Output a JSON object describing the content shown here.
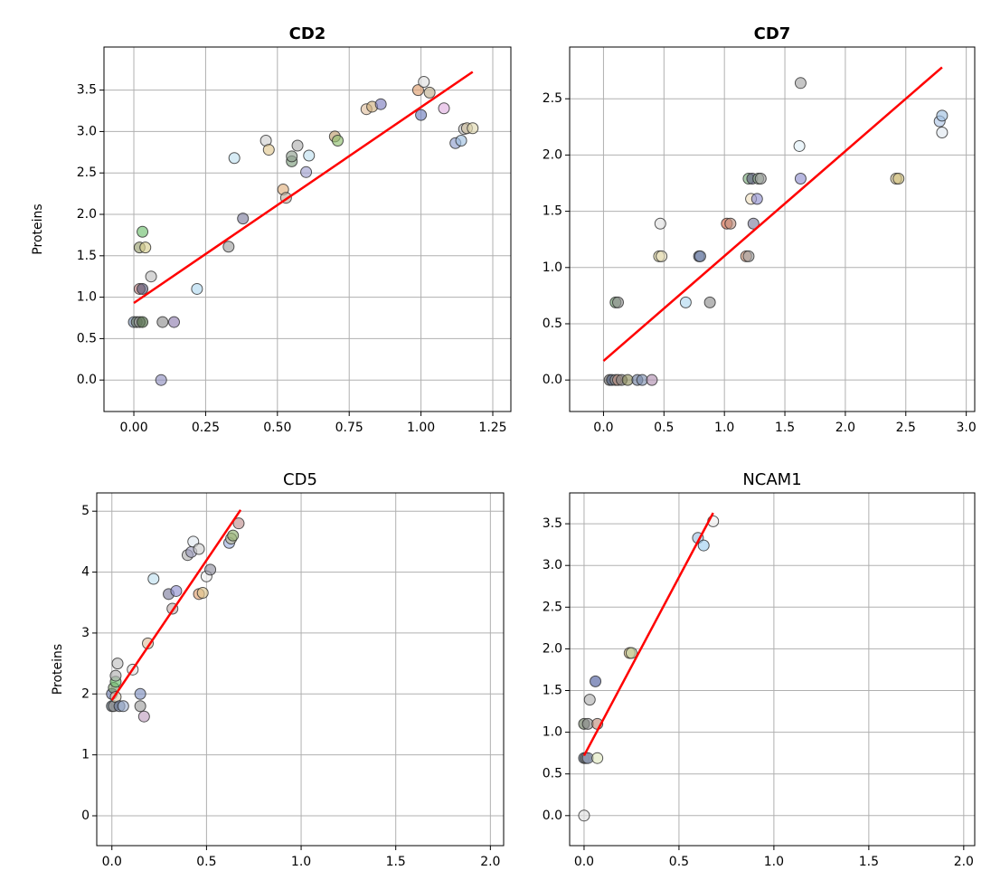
{
  "chart_data": [
    {
      "type": "scatter",
      "title": "CD2",
      "title_weight": "bold",
      "ylabel": "Proteins",
      "xlim": [
        -0.104,
        1.313
      ],
      "ylim": [
        -0.38,
        4.02
      ],
      "xticks": [
        {
          "value": 0,
          "label": "0.00"
        },
        0.25,
        {
          "value": 0.5,
          "label": "0.50"
        },
        0.75,
        {
          "value": 1,
          "label": "1.00"
        },
        1.25
      ],
      "yticks": [
        {
          "value": 0,
          "label": "0.0"
        },
        0.5,
        {
          "value": 1,
          "label": "1.0"
        },
        1.5,
        {
          "value": 2,
          "label": "2.0"
        },
        2.5,
        {
          "value": 3,
          "label": "3.0"
        },
        3.5
      ],
      "grid": true,
      "x": [
        0.0,
        0.01,
        0.02,
        0.03,
        0.02,
        0.03,
        0.02,
        0.04,
        0.03,
        0.06,
        0.1,
        0.14,
        0.095,
        0.22,
        0.33,
        0.35,
        0.38,
        0.46,
        0.47,
        0.52,
        0.53,
        0.55,
        0.55,
        0.57,
        0.6,
        0.61,
        0.7,
        0.71,
        0.81,
        0.83,
        0.86,
        0.99,
        1.0,
        1.01,
        1.03,
        1.08,
        1.12,
        1.14,
        1.15,
        1.16,
        1.18
      ],
      "y": [
        0.7,
        0.7,
        0.7,
        0.7,
        1.1,
        1.1,
        1.6,
        1.6,
        1.79,
        1.25,
        0.7,
        0.7,
        0.0,
        1.1,
        1.61,
        2.68,
        1.95,
        2.89,
        2.78,
        2.3,
        2.2,
        2.64,
        2.7,
        2.83,
        2.51,
        2.71,
        2.94,
        2.89,
        3.27,
        3.3,
        3.33,
        3.5,
        3.2,
        3.6,
        3.47,
        3.28,
        2.86,
        2.89,
        3.03,
        3.04,
        3.04
      ],
      "colors": [
        "#7a8fb0",
        "#6f7f6a",
        "#a0a0a0",
        "#4f6b45",
        "#c08080",
        "#5a5a7a",
        "#9aa070",
        "#d8d090",
        "#70c070",
        "#c0c0c0",
        "#909090",
        "#9080b0",
        "#9090c0",
        "#b0d8f0",
        "#a0a0a0",
        "#c0e0f0",
        "#8080a0",
        "#d0d0d0",
        "#e0c890",
        "#e0b080",
        "#c0b0a0",
        "#80a080",
        "#90a090",
        "#b0b0b0",
        "#a0a0d0",
        "#c0e0f0",
        "#c0a070",
        "#90c070",
        "#e0c0a0",
        "#d0b080",
        "#8080c0",
        "#e0a070",
        "#7080c0",
        "#e0e0e0",
        "#c0b090",
        "#e0b0e0",
        "#90a0d0",
        "#a0c0e0",
        "#c0c0c0",
        "#d0c0a0",
        "#e0d8b0"
      ],
      "fit": {
        "x": [
          0.0,
          1.18
        ],
        "y": [
          0.93,
          3.72
        ],
        "color": "#ff0000"
      }
    },
    {
      "type": "scatter",
      "title": "CD7",
      "title_weight": "bold",
      "xlim": [
        -0.28,
        3.07
      ],
      "ylim": [
        -0.28,
        2.96
      ],
      "xticks": [
        {
          "value": 0,
          "label": "0.0"
        },
        0.5,
        {
          "value": 1,
          "label": "1.0"
        },
        1.5,
        {
          "value": 2,
          "label": "2.0"
        },
        2.5,
        {
          "value": 3,
          "label": "3.0"
        }
      ],
      "yticks": [
        {
          "value": 0,
          "label": "0.0"
        },
        0.5,
        {
          "value": 1,
          "label": "1.0"
        },
        1.5,
        {
          "value": 2,
          "label": "2.0"
        },
        2.5
      ],
      "grid": true,
      "x": [
        0.05,
        0.07,
        0.1,
        0.12,
        0.15,
        0.2,
        0.28,
        0.32,
        0.4,
        0.1,
        0.12,
        0.46,
        0.48,
        0.47,
        0.68,
        0.79,
        0.8,
        0.88,
        1.02,
        1.05,
        1.18,
        1.2,
        1.2,
        1.22,
        1.23,
        1.24,
        1.27,
        1.28,
        1.3,
        1.62,
        1.63,
        1.63,
        2.42,
        2.44,
        2.78,
        2.8,
        2.8
      ],
      "y": [
        0,
        0,
        0,
        0,
        0,
        0,
        0,
        0,
        0,
        0.69,
        0.69,
        1.1,
        1.1,
        1.39,
        0.69,
        1.1,
        1.1,
        0.69,
        1.39,
        1.39,
        1.1,
        1.1,
        1.79,
        1.61,
        1.79,
        1.39,
        1.61,
        1.79,
        1.79,
        2.08,
        2.64,
        1.79,
        1.79,
        1.79,
        2.3,
        2.35,
        2.2
      ],
      "colors": [
        "#707070",
        "#506080",
        "#a0a0a0",
        "#c09080",
        "#808080",
        "#909060",
        "#7080a0",
        "#8090b0",
        "#b090b0",
        "#70a070",
        "#909090",
        "#e0d8a0",
        "#e8e0c0",
        "#e0e0e0",
        "#b0d8f0",
        "#6070a0",
        "#8090b0",
        "#909090",
        "#e07050",
        "#c09080",
        "#e0a080",
        "#a0a0a0",
        "#80b080",
        "#f0e0c0",
        "#606080",
        "#8080a0",
        "#9090d0",
        "#90b090",
        "#a0a0a0",
        "#e0f0f8",
        "#a8a8a8",
        "#9090d0",
        "#e0d0a0",
        "#d0c080",
        "#b0c8e8",
        "#a0c0e0",
        "#e0e8f0"
      ],
      "fit": {
        "x": [
          0.0,
          2.8
        ],
        "y": [
          0.17,
          2.78
        ],
        "color": "#ff0000"
      }
    },
    {
      "type": "scatter",
      "title": "CD5",
      "title_weight": "normal",
      "ylabel": "Proteins",
      "xlim": [
        -0.08,
        2.07
      ],
      "ylim": [
        -0.49,
        5.3
      ],
      "xticks": [
        {
          "value": 0,
          "label": "0.0"
        },
        0.5,
        {
          "value": 1,
          "label": "1.0"
        },
        1.5,
        {
          "value": 2,
          "label": "2.0"
        }
      ],
      "yticks": [
        0,
        1,
        2,
        3,
        4,
        5
      ],
      "grid": true,
      "x": [
        0.0,
        0.01,
        0.0,
        0.01,
        0.02,
        0.02,
        0.03,
        0.02,
        0.04,
        0.06,
        0.11,
        0.15,
        0.15,
        0.17,
        0.19,
        0.22,
        0.3,
        0.32,
        0.34,
        0.4,
        0.42,
        0.43,
        0.46,
        0.46,
        0.48,
        0.5,
        0.52,
        0.62,
        0.63,
        0.64,
        0.67
      ],
      "y": [
        1.8,
        1.8,
        2.0,
        2.1,
        2.2,
        2.3,
        2.5,
        1.95,
        1.8,
        1.8,
        2.4,
        1.8,
        2.0,
        1.63,
        2.83,
        3.89,
        3.64,
        3.4,
        3.69,
        4.28,
        4.33,
        4.5,
        4.38,
        3.64,
        3.66,
        3.93,
        4.04,
        4.48,
        4.55,
        4.6,
        4.8
      ],
      "colors": [
        "#607080",
        "#909090",
        "#7080b0",
        "#80a070",
        "#70c070",
        "#b0b0b0",
        "#c0c0c0",
        "#e0d0b0",
        "#7080a0",
        "#a0b0d0",
        "#e0e0e0",
        "#a0a0a0",
        "#8090c0",
        "#c0a0c0",
        "#e0c0a0",
        "#c0e0f0",
        "#8080a0",
        "#c0b0b0",
        "#9090d0",
        "#b0b0b0",
        "#a0a0c0",
        "#e0e8f0",
        "#d0d0d0",
        "#e0a070",
        "#e0c890",
        "#f0f0f0",
        "#9090a0",
        "#a0b0e0",
        "#c0c0a0",
        "#90b070",
        "#c09090"
      ],
      "fit": {
        "x": [
          0.0,
          0.68
        ],
        "y": [
          1.9,
          5.02
        ],
        "color": "#ff0000"
      }
    },
    {
      "type": "scatter",
      "title": "NCAM1",
      "title_weight": "normal",
      "xlim": [
        -0.076,
        2.058
      ],
      "ylim": [
        -0.36,
        3.87
      ],
      "xticks": [
        {
          "value": 0,
          "label": "0.0"
        },
        0.5,
        {
          "value": 1,
          "label": "1.0"
        },
        1.5,
        {
          "value": 2,
          "label": "2.0"
        }
      ],
      "yticks": [
        {
          "value": 0,
          "label": "0.0"
        },
        0.5,
        {
          "value": 1,
          "label": "1.0"
        },
        1.5,
        {
          "value": 2,
          "label": "2.0"
        },
        2.5,
        {
          "value": 3,
          "label": "3.0"
        },
        3.5
      ],
      "grid": true,
      "x": [
        0.0,
        0.0,
        0.01,
        0.02,
        0.07,
        0.0,
        0.02,
        0.07,
        0.03,
        0.06,
        0.24,
        0.25,
        0.6,
        0.63,
        0.68
      ],
      "y": [
        0.0,
        0.69,
        0.69,
        0.69,
        0.69,
        1.1,
        1.1,
        1.1,
        1.39,
        1.61,
        1.95,
        1.95,
        3.33,
        3.24,
        3.53
      ],
      "colors": [
        "#e0e0e0",
        "#506070",
        "#808080",
        "#90a0c0",
        "#e0e8c0",
        "#6a7a60",
        "#909090",
        "#c09080",
        "#b0b0b0",
        "#5060a0",
        "#e0c080",
        "#c0d0a0",
        "#a0c0e0",
        "#a0d0f0",
        "#f0f0f0"
      ],
      "fit": {
        "x": [
          0.0,
          0.68
        ],
        "y": [
          0.72,
          3.63
        ],
        "color": "#ff0000"
      }
    }
  ]
}
